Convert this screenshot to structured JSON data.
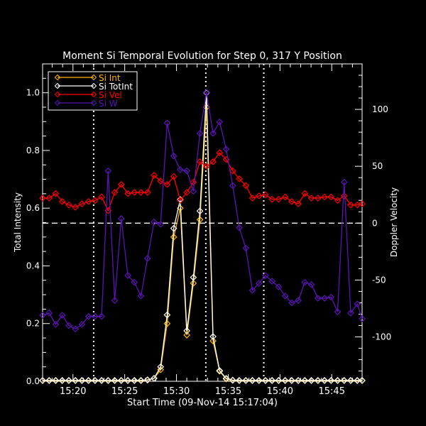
{
  "chart_data": {
    "type": "line",
    "title": "Moment Si Temporal Evolution for Step 0, 317 Y Position",
    "xlabel": "Start Time (09-Nov-14 15:17:04)",
    "ylabel": "Total Intensity",
    "y2label": "Doppler Velocity",
    "xlim": [
      "15:17:04",
      "15:47:56"
    ],
    "ylim": [
      0,
      1.1
    ],
    "y2lim": [
      -139,
      140
    ],
    "xticks": [
      "15:20",
      "15:25",
      "15:30",
      "15:35",
      "15:40",
      "15:45"
    ],
    "yticks": [
      "0.0",
      "0.2",
      "0.4",
      "0.6",
      "0.8",
      "1.0"
    ],
    "y2ticks": [
      "-100",
      "-50",
      "0",
      "50",
      "100"
    ],
    "grid": false,
    "legend_position": "top-left",
    "background": "#000000",
    "reference_lines": {
      "vertical_dotted": [
        "15:22:00",
        "15:32:50",
        "15:38:26"
      ],
      "horizontal_dashed_y2": 0
    },
    "x": [
      "15:17:04",
      "15:17:42",
      "15:18:20",
      "15:18:58",
      "15:19:36",
      "15:20:14",
      "15:20:52",
      "15:21:30",
      "15:22:08",
      "15:22:46",
      "15:23:24",
      "15:24:02",
      "15:24:40",
      "15:25:18",
      "15:25:56",
      "15:26:34",
      "15:27:12",
      "15:27:50",
      "15:28:28",
      "15:29:06",
      "15:29:44",
      "15:30:22",
      "15:31:00",
      "15:31:38",
      "15:32:16",
      "15:32:54",
      "15:33:32",
      "15:34:10",
      "15:34:48",
      "15:35:26",
      "15:36:04",
      "15:36:42",
      "15:37:20",
      "15:37:58",
      "15:38:36",
      "15:39:14",
      "15:39:52",
      "15:40:30",
      "15:41:08",
      "15:41:46",
      "15:42:24",
      "15:43:02",
      "15:43:40",
      "15:44:18",
      "15:44:56",
      "15:45:34",
      "15:46:12",
      "15:46:50",
      "15:47:28",
      "15:48:06"
    ],
    "series": [
      {
        "name": "Si Int",
        "axis": "left",
        "color": "#ffb400",
        "values": [
          0.002,
          0.002,
          0.002,
          0.002,
          0.002,
          0.002,
          0.002,
          0.002,
          0.002,
          0.002,
          0.002,
          0.002,
          0.002,
          0.002,
          0.002,
          0.002,
          0.004,
          0.01,
          0.04,
          0.2,
          0.5,
          0.6,
          0.16,
          0.34,
          0.56,
          0.95,
          0.14,
          0.035,
          0.008,
          0.003,
          0.002,
          0.002,
          0.002,
          0.002,
          0.002,
          0.002,
          0.002,
          0.002,
          0.002,
          0.002,
          0.002,
          0.002,
          0.002,
          0.002,
          0.002,
          0.002,
          0.002,
          0.002,
          0.002,
          0.002
        ]
      },
      {
        "name": "Si TotInt",
        "axis": "left",
        "color": "#ffffff",
        "values": [
          0.003,
          0.003,
          0.003,
          0.003,
          0.003,
          0.003,
          0.003,
          0.003,
          0.003,
          0.003,
          0.003,
          0.003,
          0.003,
          0.003,
          0.003,
          0.003,
          0.005,
          0.01,
          0.05,
          0.23,
          0.53,
          0.63,
          0.175,
          0.36,
          0.59,
          1.0,
          0.155,
          0.037,
          0.01,
          0.004,
          0.003,
          0.003,
          0.003,
          0.003,
          0.003,
          0.003,
          0.003,
          0.003,
          0.003,
          0.003,
          0.003,
          0.003,
          0.003,
          0.003,
          0.003,
          0.003,
          0.003,
          0.003,
          0.003,
          0.003
        ]
      },
      {
        "name": "Si Vel",
        "axis": "right",
        "color": "#ff0000",
        "values": [
          22,
          22,
          26,
          19,
          16,
          14,
          17,
          19,
          20,
          23,
          11,
          27,
          34,
          26,
          27,
          27,
          27,
          42,
          37,
          34,
          41,
          20,
          27,
          36,
          54,
          50,
          54,
          62,
          56,
          46,
          39,
          33,
          22,
          24,
          25,
          21,
          21,
          23,
          19,
          17,
          26,
          22,
          22,
          23,
          23,
          20,
          24,
          16,
          16,
          17
        ]
      },
      {
        "name": "Si W",
        "axis": "right",
        "color": "#5a14b4",
        "values": [
          -81,
          -79,
          -89,
          -81,
          -90,
          -93,
          -89,
          -82,
          -82,
          -82,
          46,
          -68,
          4,
          -46,
          -52,
          -64,
          -31,
          1,
          -1,
          88,
          59,
          47,
          46,
          28,
          79,
          115,
          79,
          89,
          65,
          33,
          -4,
          -22,
          -59,
          -53,
          -46,
          -51,
          -56,
          -64,
          -70,
          -68,
          -52,
          -54,
          -66,
          -66,
          -65,
          -78,
          36,
          -79,
          -71,
          -84
        ]
      }
    ]
  }
}
